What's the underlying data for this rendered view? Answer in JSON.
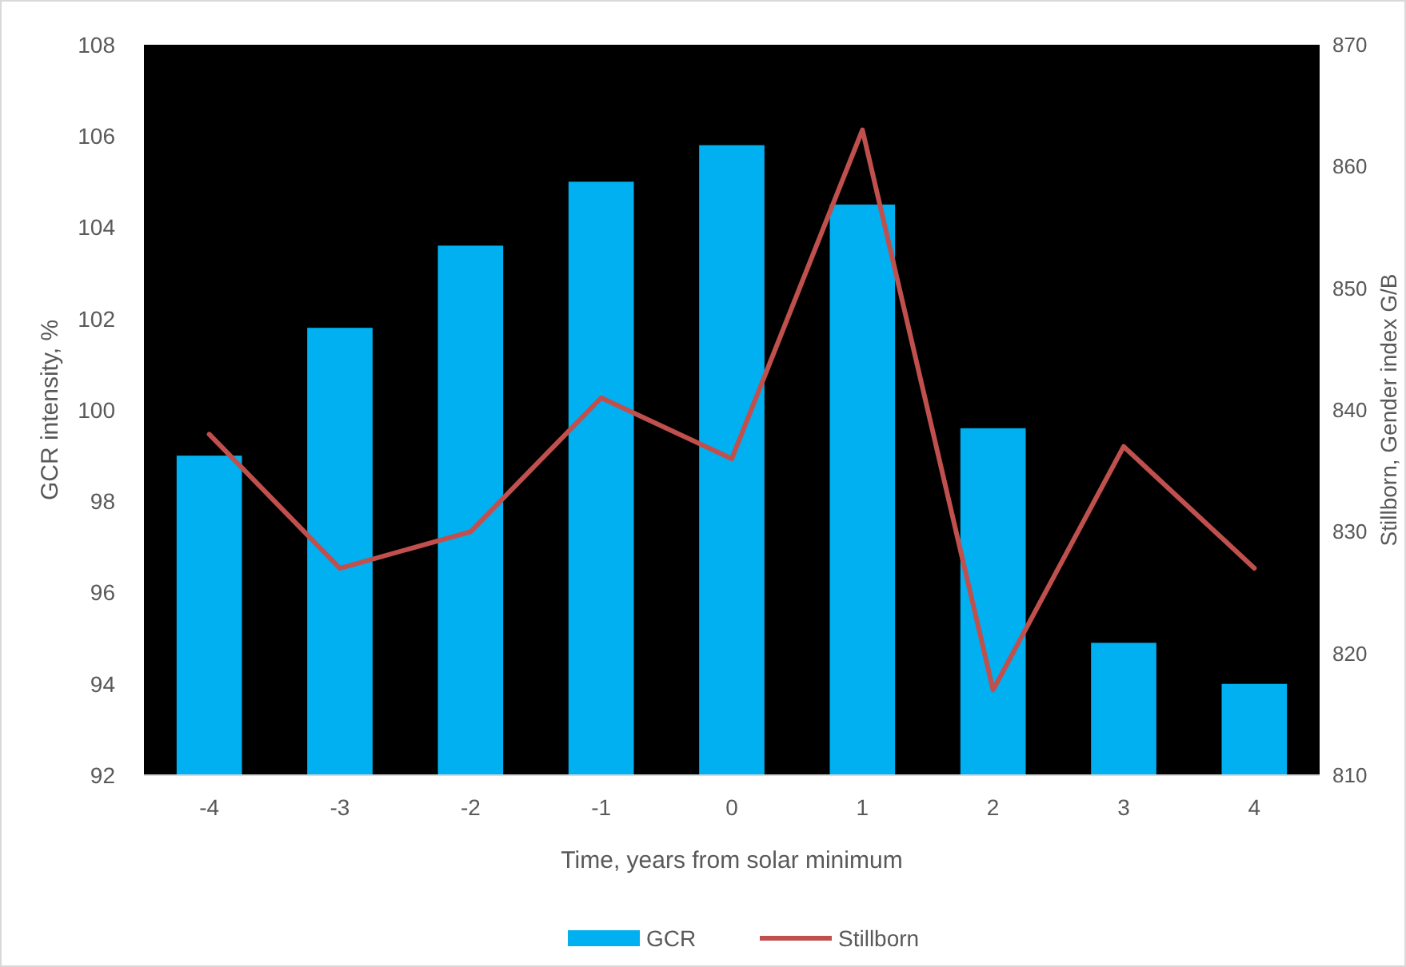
{
  "chart_data": {
    "type": "bar",
    "xlabel": "Time, years from solar minimum",
    "ylabel": "GCR intensity, %",
    "y2label": "Stillborn, Gender index G/B",
    "categories": [
      "-4",
      "-3",
      "-2",
      "-1",
      "0",
      "1",
      "2",
      "3",
      "4"
    ],
    "series": [
      {
        "name": "GCR",
        "color": "#00b0f0",
        "values": [
          99.0,
          101.8,
          103.6,
          105.0,
          105.8,
          104.5,
          99.6,
          94.9,
          94.0
        ]
      },
      {
        "name": "Stillborn",
        "type": "line",
        "axis": "y2",
        "color": "#c0504d",
        "values": [
          838,
          827,
          830,
          841,
          836,
          863,
          817,
          837,
          827
        ]
      }
    ],
    "ylim": [
      92,
      108
    ],
    "yticks": [
      92,
      94,
      96,
      98,
      100,
      102,
      104,
      106,
      108
    ],
    "y2lim": [
      810,
      870
    ],
    "y2ticks": [
      810,
      820,
      830,
      840,
      850,
      860,
      870
    ],
    "legend": "bottom",
    "grid": false,
    "marker": "none",
    "line_style": "solid"
  }
}
